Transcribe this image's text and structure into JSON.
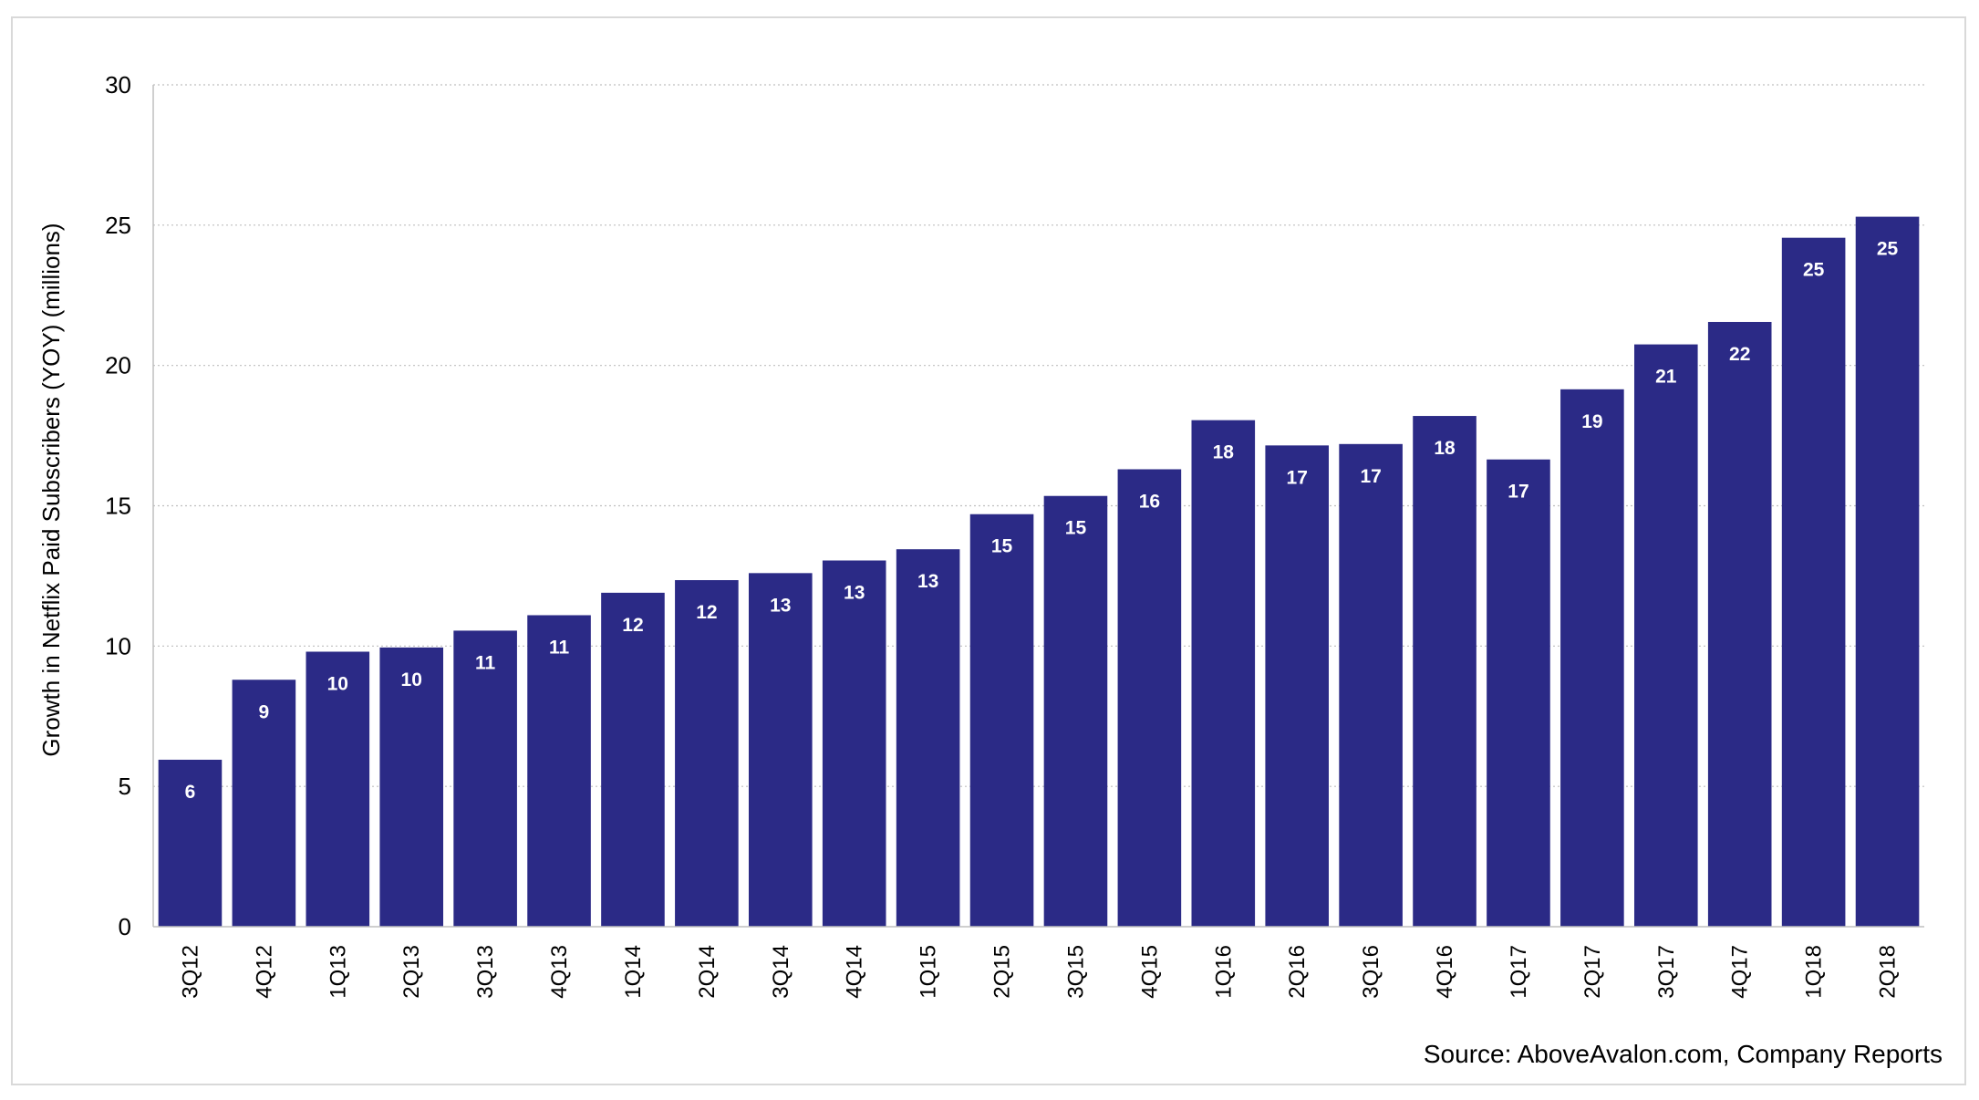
{
  "chart_data": {
    "type": "bar",
    "ylabel": "Growth in Netflix Paid Subscribers  (YOY) (millions)",
    "ylim": [
      0,
      30
    ],
    "yticks": [
      0,
      5,
      10,
      15,
      20,
      25,
      30
    ],
    "grid": true,
    "bar_color": "#2b2a86",
    "categories": [
      "3Q12",
      "4Q12",
      "1Q13",
      "2Q13",
      "3Q13",
      "4Q13",
      "1Q14",
      "2Q14",
      "3Q14",
      "4Q14",
      "1Q15",
      "2Q15",
      "3Q15",
      "4Q15",
      "1Q16",
      "2Q16",
      "3Q16",
      "4Q16",
      "1Q17",
      "2Q17",
      "3Q17",
      "4Q17",
      "1Q18",
      "2Q18"
    ],
    "values": [
      5.95,
      8.8,
      9.8,
      9.95,
      10.55,
      11.1,
      11.9,
      12.35,
      12.6,
      13.05,
      13.45,
      14.7,
      15.35,
      16.3,
      18.05,
      17.15,
      17.2,
      18.2,
      16.65,
      19.15,
      20.75,
      21.55,
      24.55,
      25.3
    ],
    "data_labels": [
      "6",
      "9",
      "10",
      "10",
      "11",
      "11",
      "12",
      "12",
      "13",
      "13",
      "13",
      "15",
      "15",
      "16",
      "18",
      "17",
      "17",
      "18",
      "17",
      "19",
      "21",
      "22",
      "25",
      "25"
    ]
  },
  "source_note": "Source: AboveAvalon.com, Company Reports"
}
